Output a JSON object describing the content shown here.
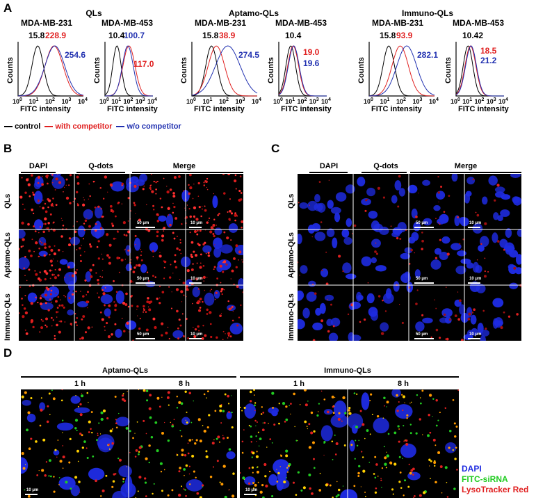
{
  "panels": {
    "A": "A",
    "B": "B",
    "C": "C",
    "D": "D"
  },
  "panelA": {
    "groups": [
      {
        "title": "QLs",
        "cells": [
          {
            "cell": "MDA-MB-231",
            "values": [
              {
                "v": "15.8",
                "c": "black"
              },
              {
                "v": "228.9",
                "c": "red"
              },
              {
                "v": "254.6",
                "c": "blue"
              }
            ]
          },
          {
            "cell": "MDA-MB-453",
            "values": [
              {
                "v": "10.4",
                "c": "black"
              },
              {
                "v": "100.7",
                "c": "blue"
              },
              {
                "v": "117.0",
                "c": "red"
              }
            ]
          }
        ]
      },
      {
        "title": "Aptamo-QLs",
        "cells": [
          {
            "cell": "MDA-MB-231",
            "values": [
              {
                "v": "15.8",
                "c": "black"
              },
              {
                "v": "38.9",
                "c": "red"
              },
              {
                "v": "274.5",
                "c": "blue"
              }
            ]
          },
          {
            "cell": "MDA-MB-453",
            "values": [
              {
                "v": "10.4",
                "c": "black"
              },
              {
                "v": "19.0",
                "c": "red"
              },
              {
                "v": "19.6",
                "c": "blue"
              }
            ]
          }
        ]
      },
      {
        "title": "Immuno-QLs",
        "cells": [
          {
            "cell": "MDA-MB-231",
            "values": [
              {
                "v": "15.8",
                "c": "black"
              },
              {
                "v": "93.9",
                "c": "red"
              },
              {
                "v": "282.1",
                "c": "blue"
              }
            ]
          },
          {
            "cell": "MDA-MB-453",
            "values": [
              {
                "v": "10.42",
                "c": "black"
              },
              {
                "v": "18.5",
                "c": "red"
              },
              {
                "v": "21.2",
                "c": "blue"
              }
            ]
          }
        ]
      }
    ],
    "ylabel": "Counts",
    "xlabel": "FITC intensity",
    "xticks": [
      "10",
      "10",
      "10",
      "10",
      "10"
    ],
    "xtick_exp": [
      "0",
      "1",
      "2",
      "3",
      "4"
    ],
    "legend": [
      {
        "label": "control",
        "color": "#000000"
      },
      {
        "label": "with competitor",
        "color": "#e02020"
      },
      {
        "label": "w/o competitor",
        "color": "#2030b0"
      }
    ]
  },
  "panelB": {
    "cols": [
      "DAPI",
      "Q-dots",
      "Merge"
    ],
    "rows": [
      "QLs",
      "Aptamo-QLs",
      "Immuno-QLs"
    ],
    "scale50": "50 μm",
    "scale10": "10 μm"
  },
  "panelC": {
    "cols": [
      "DAPI",
      "Q-dots",
      "Merge"
    ],
    "rows": [
      "QLs",
      "Aptamo-QLs",
      "Immuno-QLs"
    ],
    "scale50": "50 μm",
    "scale10": "10 μm"
  },
  "panelD": {
    "groups": [
      "Aptamo-QLs",
      "Immuno-QLs"
    ],
    "times": [
      "1 h",
      "8 h",
      "1 h",
      "8 h"
    ],
    "scale10": "10 μm",
    "legend": [
      {
        "label": "DAPI",
        "color": "#1e2be0"
      },
      {
        "label": "FITC-siRNA",
        "color": "#22cc22"
      },
      {
        "label": "LysoTracker Red",
        "color": "#e02020"
      }
    ]
  },
  "colors": {
    "red": "#e02020",
    "blue": "#2030b0",
    "black": "#000000"
  }
}
